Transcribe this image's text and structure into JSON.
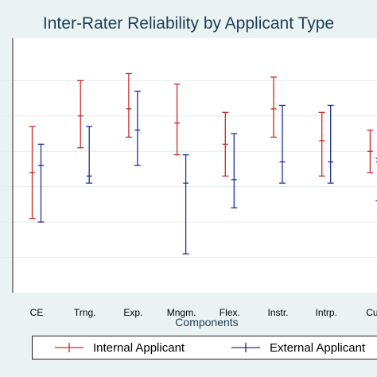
{
  "chart_data": {
    "type": "errorbar",
    "title": "Inter-Rater Reliability by Applicant Type",
    "xlabel": "Components",
    "ylabel": "",
    "categories": [
      "CE",
      "Trng.",
      "Exp.",
      "Mngm.",
      "Flex.",
      "Instr.",
      "Intrp.",
      "Cult"
    ],
    "series": [
      {
        "name": "Internal Applicant",
        "color": "#cc2a2a",
        "estimate": [
          0.54,
          0.7,
          0.72,
          0.68,
          0.62,
          0.72,
          0.63,
          0.6
        ],
        "lower": [
          0.41,
          0.61,
          0.64,
          0.59,
          0.53,
          0.64,
          0.53,
          0.54
        ],
        "upper": [
          0.67,
          0.8,
          0.82,
          0.79,
          0.71,
          0.81,
          0.71,
          0.66
        ]
      },
      {
        "name": "External Applicant",
        "color": "#1f2f9a",
        "estimate": [
          0.56,
          0.53,
          0.66,
          0.51,
          0.52,
          0.57,
          0.57,
          0.57
        ],
        "lower": [
          0.4,
          0.51,
          0.56,
          0.31,
          0.44,
          0.51,
          0.51,
          0.46
        ],
        "upper": [
          0.62,
          0.67,
          0.77,
          0.59,
          0.65,
          0.73,
          0.73,
          0.58
        ]
      }
    ]
  }
}
